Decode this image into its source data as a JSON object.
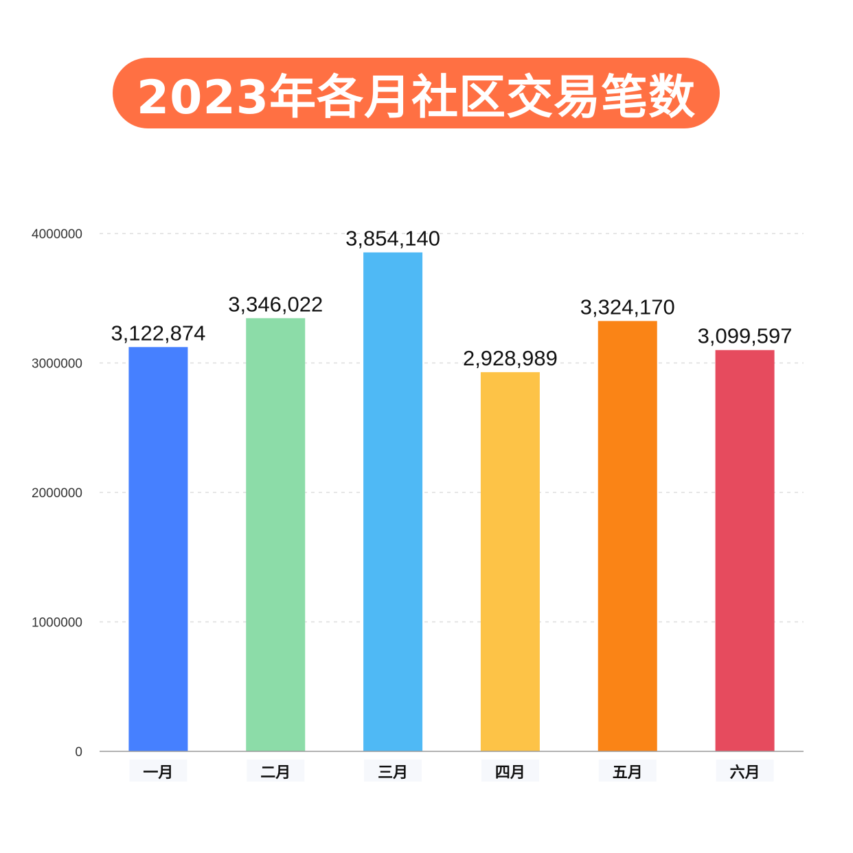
{
  "chart_data": {
    "type": "bar",
    "title": "2023年各月社区交易笔数",
    "categories": [
      "一月",
      "二月",
      "三月",
      "四月",
      "五月",
      "六月"
    ],
    "values": [
      3122874,
      3346022,
      3854140,
      2928989,
      3324170,
      3099597
    ],
    "value_labels": [
      "3,122,874",
      "3,346,022",
      "3,854,140",
      "2,928,989",
      "3,324,170",
      "3,099,597"
    ],
    "colors": [
      "#4680ff",
      "#8cdca8",
      "#4fb9f5",
      "#fdc347",
      "#fa8416",
      "#e64b5e"
    ],
    "ylim": [
      0,
      4000000
    ],
    "yticks": [
      0,
      1000000,
      2000000,
      3000000,
      4000000
    ],
    "ytick_labels": [
      "0",
      "1000000",
      "2000000",
      "3000000",
      "4000000"
    ],
    "grid": true,
    "xlabel": "",
    "ylabel": ""
  },
  "style": {
    "title_bg": "#ff7043",
    "grid_color": "#dddddd",
    "axis_color": "#999999"
  }
}
